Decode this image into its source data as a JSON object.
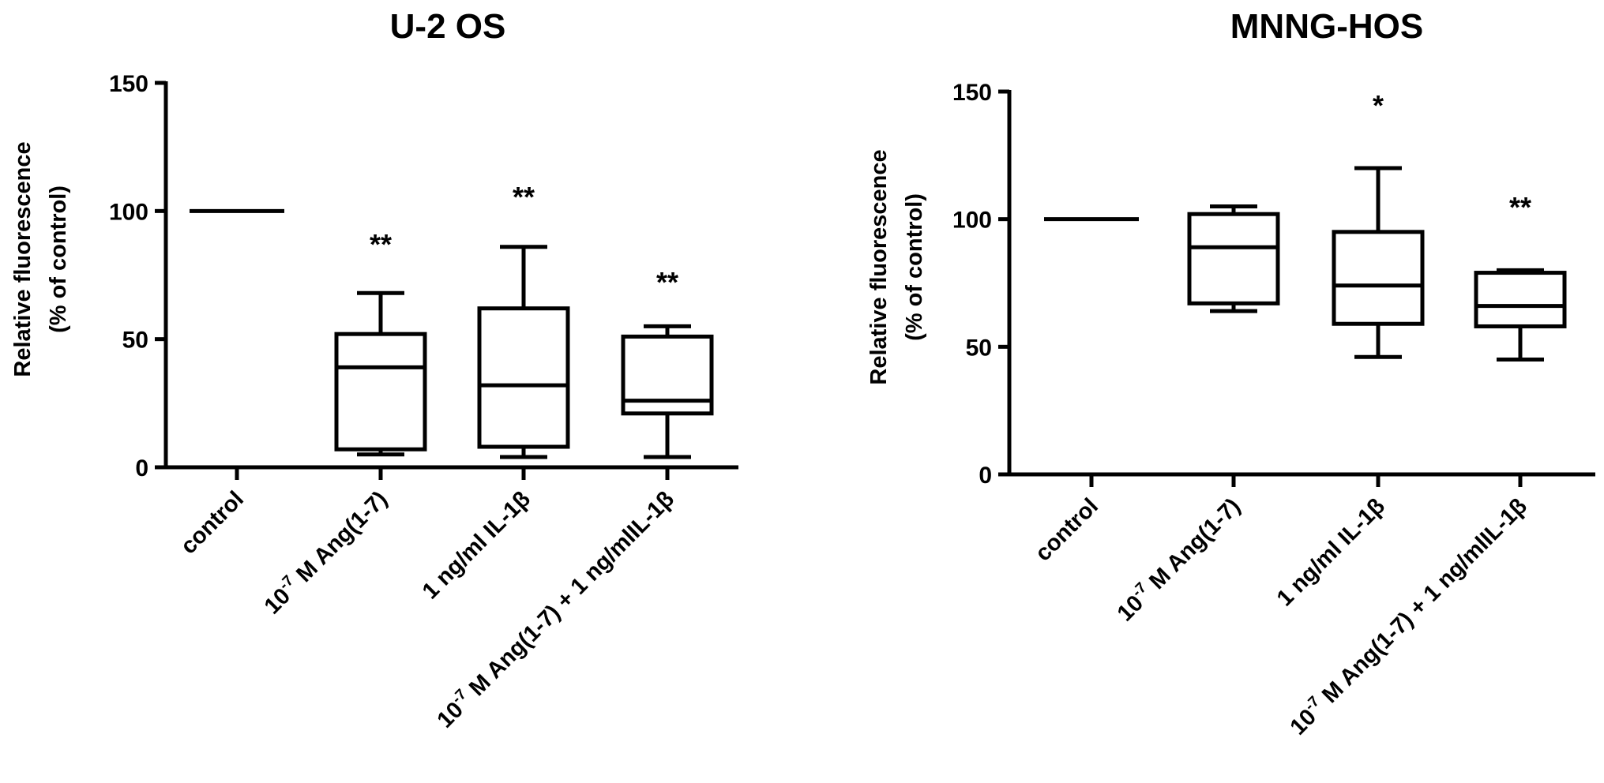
{
  "chart_data": [
    {
      "type": "box",
      "title": "U-2 OS",
      "ylabel_line1": "Relative fluorescence",
      "ylabel_line2": "(% of control)",
      "ylim": [
        0,
        150
      ],
      "yticks": [
        "0",
        "50",
        "100",
        "150"
      ],
      "categories": [
        {
          "pre": "",
          "sup": "",
          "post": "control"
        },
        {
          "pre": "10",
          "sup": "-7",
          "post": " M Ang(1-7)"
        },
        {
          "pre": "",
          "sup": "",
          "post": "1 ng/ml IL-1β"
        },
        {
          "pre": "10",
          "sup": "-7",
          "post": " M Ang(1-7) + 1 ng/mlIL-1β"
        }
      ],
      "boxes": [
        {
          "min": 100,
          "q1": 100,
          "median": 100,
          "q3": 100,
          "max": 100,
          "sig": ""
        },
        {
          "min": 5,
          "q1": 7,
          "median": 39,
          "q3": 52,
          "max": 68,
          "sig": "**"
        },
        {
          "min": 4,
          "q1": 8,
          "median": 32,
          "q3": 62,
          "max": 86,
          "sig": "**"
        },
        {
          "min": 4,
          "q1": 21,
          "median": 26,
          "q3": 51,
          "max": 55,
          "sig": "**"
        }
      ]
    },
    {
      "type": "box",
      "title": "MNNG-HOS",
      "ylabel_line1": "Relative fluorescence",
      "ylabel_line2": "(% of control)",
      "ylim": [
        0,
        150
      ],
      "yticks": [
        "0",
        "50",
        "100",
        "150"
      ],
      "categories": [
        {
          "pre": "",
          "sup": "",
          "post": "control"
        },
        {
          "pre": "10",
          "sup": "-7",
          "post": " M Ang(1-7)"
        },
        {
          "pre": "",
          "sup": "",
          "post": "1 ng/ml IL-1β"
        },
        {
          "pre": "10",
          "sup": "-7",
          "post": " M Ang(1-7) + 1 ng/mlIL-1β"
        }
      ],
      "boxes": [
        {
          "min": 100,
          "q1": 100,
          "median": 100,
          "q3": 100,
          "max": 100,
          "sig": ""
        },
        {
          "min": 64,
          "q1": 67,
          "median": 89,
          "q3": 102,
          "max": 105,
          "sig": ""
        },
        {
          "min": 46,
          "q1": 59,
          "median": 74,
          "q3": 95,
          "max": 120,
          "sig": "*"
        },
        {
          "min": 45,
          "q1": 58,
          "median": 66,
          "q3": 79,
          "max": 80,
          "sig": "**"
        }
      ]
    }
  ]
}
